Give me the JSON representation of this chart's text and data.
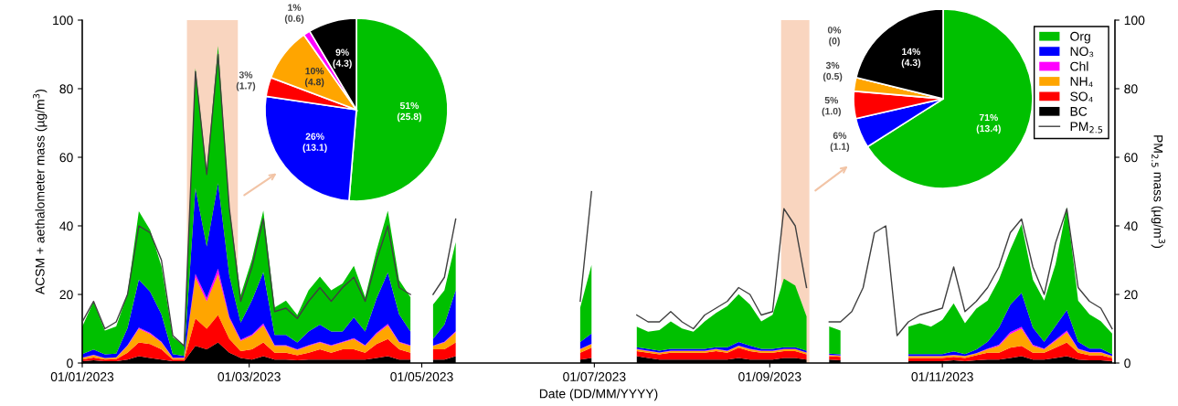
{
  "chart_data": [
    {
      "type": "area",
      "stacked": true,
      "xlabel": "Date (DD/MM/YYYY)",
      "ylabel": "ACSM + aethalometer mass (µg/m$^{3}$)",
      "y2label": "PM$_{2.5}$ mass (µg/m$^{3}$)",
      "x": [
        "2023-01-01",
        "2023-01-05",
        "2023-01-09",
        "2023-01-13",
        "2023-01-17",
        "2023-01-21",
        "2023-01-25",
        "2023-01-29",
        "2023-02-02",
        "2023-02-06",
        "2023-02-10",
        "2023-02-14",
        "2023-02-18",
        "2023-02-22",
        "2023-02-26",
        "2023-03-02",
        "2023-03-06",
        "2023-03-10",
        "2023-03-14",
        "2023-03-18",
        "2023-03-22",
        "2023-03-26",
        "2023-03-30",
        "2023-04-03",
        "2023-04-07",
        "2023-04-11",
        "2023-04-15",
        "2023-04-19",
        "2023-04-23",
        "2023-04-27",
        "2023-05-01",
        "2023-05-05",
        "2023-05-09",
        "2023-05-13",
        "2023-05-17",
        "2023-05-21",
        "2023-05-25",
        "2023-05-29",
        "2023-06-02",
        "2023-06-06",
        "2023-06-10",
        "2023-06-14",
        "2023-06-18",
        "2023-06-22",
        "2023-06-26",
        "2023-06-30",
        "2023-07-04",
        "2023-07-08",
        "2023-07-12",
        "2023-07-16",
        "2023-07-20",
        "2023-07-24",
        "2023-07-28",
        "2023-08-01",
        "2023-08-05",
        "2023-08-09",
        "2023-08-13",
        "2023-08-17",
        "2023-08-21",
        "2023-08-25",
        "2023-08-29",
        "2023-09-02",
        "2023-09-06",
        "2023-09-10",
        "2023-09-14",
        "2023-09-18",
        "2023-09-22",
        "2023-09-26",
        "2023-09-30",
        "2023-10-04",
        "2023-10-08",
        "2023-10-12",
        "2023-10-16",
        "2023-10-20",
        "2023-10-24",
        "2023-10-28",
        "2023-11-01",
        "2023-11-05",
        "2023-11-09",
        "2023-11-13",
        "2023-11-17",
        "2023-11-21",
        "2023-11-25",
        "2023-11-29",
        "2023-12-03",
        "2023-12-07",
        "2023-12-11",
        "2023-12-15",
        "2023-12-19",
        "2023-12-23",
        "2023-12-27",
        "2023-12-31"
      ],
      "series": [
        {
          "name": "BC",
          "color": "#000000",
          "values": [
            0.5,
            0.8,
            0.5,
            0.5,
            1,
            2,
            1.5,
            1,
            0.5,
            0.5,
            5,
            4,
            6,
            3,
            1.5,
            1,
            2,
            1,
            1,
            0.8,
            1,
            1,
            1,
            1,
            1,
            1,
            1.5,
            2,
            1,
            1,
            null,
            1,
            1,
            2,
            null,
            null,
            null,
            null,
            null,
            null,
            null,
            null,
            null,
            null,
            1,
            1.5,
            null,
            null,
            null,
            2,
            1.5,
            1,
            1,
            1,
            1,
            1,
            1,
            1,
            1.5,
            1,
            1,
            1,
            1.5,
            1.5,
            1,
            null,
            1,
            0.8,
            null,
            null,
            null,
            null,
            null,
            0.5,
            0.5,
            0.5,
            0.5,
            0.8,
            0.5,
            0.8,
            1,
            1,
            1.5,
            2,
            1,
            1,
            1.5,
            2,
            1,
            0.8,
            0.8,
            0.5
          ]
        },
        {
          "name": "SO₄",
          "color": "#ff0000",
          "values": [
            0.5,
            0.8,
            0.5,
            0.6,
            2,
            4,
            4,
            3,
            0.5,
            0.5,
            8,
            6,
            8,
            4,
            2,
            3,
            4,
            2,
            2,
            1.5,
            2,
            3,
            2,
            3,
            3,
            2,
            4,
            5,
            3,
            2,
            null,
            3,
            3,
            4,
            null,
            null,
            null,
            null,
            null,
            null,
            null,
            null,
            null,
            null,
            2,
            3,
            null,
            null,
            null,
            1.5,
            1.5,
            1.5,
            2,
            2,
            2,
            2,
            2.5,
            2,
            3,
            2.5,
            2,
            2,
            2,
            2,
            1.5,
            null,
            1,
            1,
            null,
            null,
            null,
            null,
            null,
            1,
            1,
            1,
            1,
            1,
            1,
            1.5,
            2,
            2,
            3,
            3,
            2,
            2,
            3,
            4,
            2,
            1.5,
            1.5,
            1
          ]
        },
        {
          "name": "NH₄",
          "color": "#ffa500",
          "values": [
            0.5,
            0.7,
            0.4,
            0.5,
            2,
            4,
            3,
            2,
            0.5,
            0.5,
            12,
            8,
            12,
            6,
            3,
            4,
            5,
            2,
            2,
            1.5,
            2,
            2,
            2,
            2,
            3,
            2,
            3,
            4,
            2,
            2,
            null,
            1,
            2,
            3,
            null,
            null,
            null,
            null,
            null,
            null,
            null,
            null,
            null,
            null,
            1,
            1,
            null,
            null,
            null,
            0.5,
            0.5,
            0.5,
            0.5,
            0.5,
            0.5,
            0.5,
            0.5,
            0.5,
            0.5,
            0.5,
            0.5,
            0.5,
            0.5,
            0.5,
            0.5,
            null,
            0.3,
            0.3,
            null,
            null,
            null,
            null,
            null,
            0.5,
            0.5,
            0.5,
            0.5,
            0.5,
            0.5,
            0.5,
            1,
            2,
            4,
            5,
            2,
            1,
            2,
            3,
            1,
            0.8,
            0.8,
            0.5
          ]
        },
        {
          "name": "Chl",
          "color": "#ff00ff",
          "values": [
            0.1,
            0.1,
            0.1,
            0.1,
            0.2,
            0.3,
            0.3,
            0.2,
            0.1,
            0.1,
            1,
            1,
            1.5,
            0.5,
            0.3,
            0.3,
            0.5,
            0.2,
            0.2,
            0.2,
            0.2,
            0.2,
            0.2,
            0.2,
            0.3,
            0.2,
            0.3,
            0.4,
            0.2,
            0.2,
            null,
            0.1,
            0.2,
            0.3,
            null,
            null,
            null,
            null,
            null,
            null,
            null,
            null,
            null,
            null,
            0.1,
            0.1,
            null,
            null,
            null,
            0.1,
            0.1,
            0.1,
            0.1,
            0.1,
            0.1,
            0.1,
            0.1,
            0.1,
            0.1,
            0.1,
            0.1,
            0.1,
            0.1,
            0.1,
            0.1,
            null,
            0.1,
            0.1,
            null,
            null,
            null,
            null,
            null,
            0.1,
            0.1,
            0.1,
            0.1,
            0.1,
            0.1,
            0.1,
            0.2,
            0.3,
            0.5,
            0.5,
            0.3,
            0.2,
            0.3,
            0.5,
            0.2,
            0.1,
            0.1,
            0.1
          ]
        },
        {
          "name": "NO₃",
          "color": "#0000ff",
          "values": [
            1,
            1.5,
            1,
            1,
            5,
            14,
            12,
            8,
            1,
            0.5,
            25,
            15,
            25,
            12,
            5,
            10,
            15,
            3,
            3,
            2,
            4,
            5,
            4,
            3,
            6,
            4,
            10,
            15,
            8,
            4,
            null,
            2,
            5,
            12,
            null,
            null,
            null,
            null,
            null,
            null,
            null,
            null,
            null,
            null,
            2,
            3,
            null,
            null,
            null,
            0.5,
            0.5,
            0.5,
            0.5,
            0.5,
            0.5,
            0.5,
            0.5,
            1,
            1,
            1,
            0.5,
            0.5,
            0.5,
            0.5,
            0.5,
            null,
            0.3,
            0.3,
            null,
            null,
            null,
            null,
            null,
            0.5,
            0.5,
            0.5,
            0.5,
            1,
            0.5,
            1,
            2,
            5,
            8,
            10,
            5,
            2,
            4,
            6,
            2,
            1,
            1,
            0.5
          ]
        },
        {
          "name": "Org",
          "color": "#00c000",
          "values": [
            8,
            14,
            7,
            8,
            10,
            20,
            18,
            14,
            5,
            3,
            35,
            22,
            40,
            20,
            8,
            12,
            18,
            8,
            10,
            8,
            12,
            14,
            12,
            14,
            15,
            10,
            14,
            18,
            10,
            10,
            null,
            10,
            10,
            14,
            null,
            null,
            null,
            null,
            null,
            null,
            null,
            null,
            null,
            null,
            10,
            20,
            null,
            null,
            null,
            6,
            5,
            6,
            8,
            6,
            5,
            8,
            10,
            12,
            14,
            12,
            8,
            10,
            20,
            18,
            10,
            null,
            8,
            7,
            null,
            null,
            null,
            null,
            null,
            8,
            9,
            8,
            10,
            14,
            9,
            12,
            12,
            14,
            16,
            20,
            14,
            12,
            18,
            30,
            12,
            10,
            8,
            6
          ]
        },
        {
          "name": "PM$_{2.5}$",
          "type": "line",
          "axis": "y2",
          "color": "#404040",
          "values": [
            12,
            18,
            10,
            12,
            20,
            40,
            38,
            30,
            8,
            5,
            85,
            55,
            90,
            45,
            18,
            28,
            42,
            15,
            16,
            13,
            18,
            22,
            18,
            22,
            25,
            18,
            30,
            40,
            22,
            20,
            null,
            20,
            25,
            42,
            null,
            null,
            null,
            null,
            null,
            null,
            null,
            null,
            null,
            null,
            18,
            50,
            null,
            null,
            null,
            14,
            12,
            12,
            15,
            12,
            10,
            14,
            16,
            18,
            22,
            20,
            14,
            15,
            45,
            40,
            22,
            null,
            12,
            12,
            15,
            22,
            38,
            40,
            8,
            12,
            14,
            15,
            16,
            28,
            15,
            18,
            22,
            28,
            38,
            42,
            28,
            20,
            35,
            45,
            22,
            18,
            16,
            10
          ]
        }
      ],
      "xlim": [
        "2023-01-01",
        "2024-01-01"
      ],
      "xticks": [
        {
          "value": "2023-01-01",
          "label": "01/01/2023"
        },
        {
          "value": "2023-03-01",
          "label": "01/03/2023"
        },
        {
          "value": "2023-05-01",
          "label": "01/05/2023"
        },
        {
          "value": "2023-07-01",
          "label": "01/07/2023"
        },
        {
          "value": "2023-09-01",
          "label": "01/09/2023"
        },
        {
          "value": "2023-11-01",
          "label": "01/11/2023"
        }
      ],
      "ylim": [
        0,
        100
      ],
      "yticks": [
        0,
        20,
        40,
        60,
        80,
        100
      ],
      "y2lim": [
        0,
        100
      ],
      "y2ticks": [
        0,
        20,
        40,
        60,
        80,
        100
      ],
      "bands": [
        {
          "axis": "x",
          "from": "2023-02-07",
          "to": "2023-02-25",
          "color": "#f9d5bf"
        },
        {
          "axis": "x",
          "from": "2023-09-05",
          "to": "2023-09-15",
          "color": "#f9d5bf"
        }
      ],
      "legend": "top right",
      "grid": false
    },
    {
      "type": "pie",
      "values": [
        25.8,
        13.1,
        1.7,
        4.8,
        0.6,
        4.3
      ],
      "colors": [
        "#00c000",
        "#0000ff",
        "#ff0000",
        "#ffa500",
        "#ff00ff",
        "#000000"
      ],
      "value_labels": [
        "51%\n(25.8)",
        "26%\n(13.1)",
        "3%\n(1.7)",
        "10%\n(4.8)",
        "1%\n(0.6)",
        "9%\n(4.3)"
      ]
    },
    {
      "type": "pie",
      "values": [
        13.4,
        1.1,
        1.0,
        0.5,
        0,
        4.3
      ],
      "colors": [
        "#00c000",
        "#0000ff",
        "#ff0000",
        "#ffa500",
        "#ff00ff",
        "#000000"
      ],
      "value_labels": [
        "71%\n(13.4)",
        "6%\n(1.1)",
        "5%\n(1.0)",
        "3%\n(0.5)",
        "0%\n(0)",
        "14%\n(4.3)"
      ]
    }
  ]
}
